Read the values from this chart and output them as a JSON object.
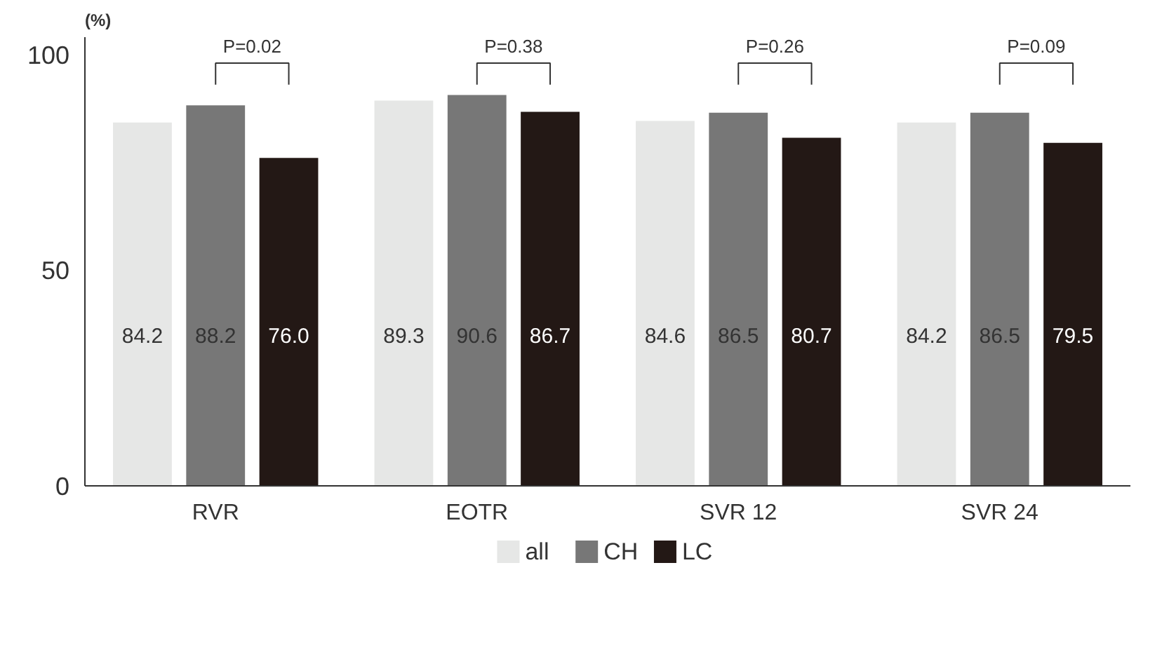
{
  "chart_data": {
    "type": "bar",
    "ylabel": "(%)",
    "categories": [
      "RVR",
      "EOTR",
      "SVR 12",
      "SVR 24"
    ],
    "series": [
      {
        "name": "all",
        "color": "#e6e7e6",
        "values": [
          84.2,
          89.3,
          84.6,
          84.2
        ],
        "value_labels": [
          "84.2",
          "89.3",
          "84.6",
          "84.2"
        ]
      },
      {
        "name": "CH",
        "color": "#777777",
        "values": [
          88.2,
          90.6,
          86.5,
          86.5
        ],
        "value_labels": [
          "88.2",
          "90.6",
          "86.5",
          "86.5"
        ]
      },
      {
        "name": "LC",
        "color": "#231815",
        "values": [
          76.0,
          86.7,
          80.7,
          79.5
        ],
        "value_labels": [
          "76.0",
          "86.7",
          "80.7",
          "79.5"
        ]
      }
    ],
    "ylim": [
      0,
      104
    ],
    "yticks": [
      0,
      50,
      100
    ],
    "legend": "bottom",
    "annotations": [
      "P=0.02",
      "P=0.38",
      "P=0.26",
      "P=0.09"
    ]
  }
}
